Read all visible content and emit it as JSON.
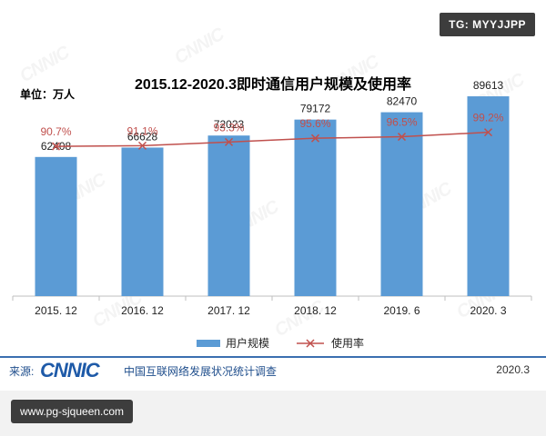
{
  "badges": {
    "corner": "TG: MYYJJPP",
    "url": "www.pg-sjqueen.com"
  },
  "source": {
    "label": "来源:",
    "logo": "CNNIC",
    "org": "中国互联网络发展状况统计调查",
    "date": "2020.3"
  },
  "watermark_text": "CNNIC",
  "colors": {
    "bar": "#5b9bd5",
    "line": "#c0504d",
    "rate_label": "#c0504d",
    "axis": "#bfbfbf"
  },
  "chart_data": {
    "type": "bar",
    "title": "2015.12-2020.3即时通信用户规模及使用率",
    "unit_label": "单位：万人",
    "categories": [
      "2015. 12",
      "2016. 12",
      "2017. 12",
      "2018. 12",
      "2019. 6",
      "2020. 3"
    ],
    "series": [
      {
        "name": "用户规模",
        "kind": "bar",
        "values": [
          62408,
          66628,
          72023,
          79172,
          82470,
          89613
        ],
        "labels": [
          "62408",
          "66628",
          "72023",
          "79172",
          "82470",
          "89613"
        ]
      },
      {
        "name": "使用率",
        "kind": "line",
        "values": [
          90.7,
          91.1,
          93.3,
          95.6,
          96.5,
          99.2
        ],
        "labels": [
          "90.7%",
          "91.1%",
          "93.3%",
          "95.6%",
          "96.5%",
          "99.2%"
        ]
      }
    ],
    "ylim_bar": [
      0,
      120000
    ],
    "ylim_rate": [
      0,
      110
    ],
    "legend_placement": "bottom-center",
    "grid": false
  }
}
